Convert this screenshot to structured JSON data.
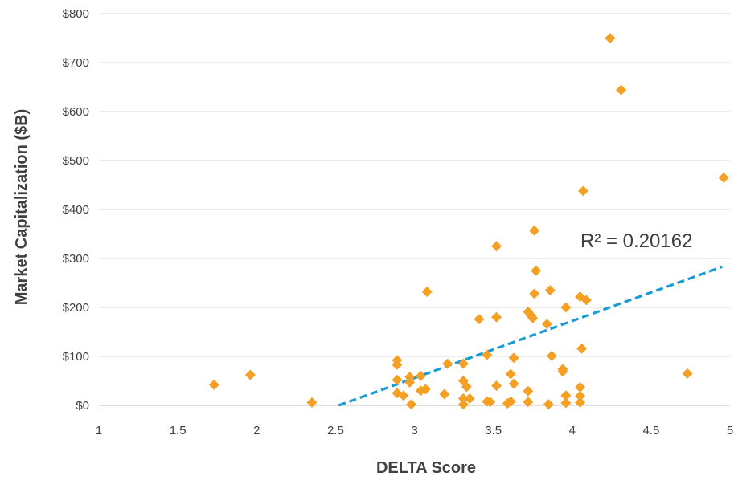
{
  "chart_data": {
    "type": "scatter",
    "title": "",
    "xlabel": "DELTA Score",
    "ylabel": "Market Capitalization  ($B)",
    "xlim": [
      1,
      5
    ],
    "ylim": [
      0,
      800
    ],
    "x_ticks": [
      "1",
      "1.5",
      "2",
      "2.5",
      "3",
      "3.5",
      "4",
      "4.5",
      "5"
    ],
    "y_ticks": [
      "$0",
      "$100",
      "$200",
      "$300",
      "$400",
      "$500",
      "$600",
      "$700",
      "$800"
    ],
    "grid": "horizontal",
    "marker": "diamond",
    "marker_color": "#F4A025",
    "trendline": {
      "label": "R² = 0.20162",
      "color": "#1A9BD7",
      "style": "dashed",
      "start": [
        2.52,
        0
      ],
      "end": [
        4.95,
        283
      ]
    },
    "series": [
      {
        "name": "",
        "points": [
          [
            1.73,
            42
          ],
          [
            1.96,
            62
          ],
          [
            2.35,
            6
          ],
          [
            2.89,
            92
          ],
          [
            2.89,
            83
          ],
          [
            2.89,
            52
          ],
          [
            2.89,
            25
          ],
          [
            2.93,
            20
          ],
          [
            2.97,
            58
          ],
          [
            2.97,
            47
          ],
          [
            2.98,
            2
          ],
          [
            3.04,
            60
          ],
          [
            3.04,
            30
          ],
          [
            3.07,
            33
          ],
          [
            3.08,
            232
          ],
          [
            3.19,
            23
          ],
          [
            3.21,
            85
          ],
          [
            3.31,
            85
          ],
          [
            3.31,
            50
          ],
          [
            3.31,
            14
          ],
          [
            3.31,
            2
          ],
          [
            3.33,
            38
          ],
          [
            3.35,
            14
          ],
          [
            3.41,
            176
          ],
          [
            3.46,
            103
          ],
          [
            3.46,
            8
          ],
          [
            3.48,
            7
          ],
          [
            3.52,
            325
          ],
          [
            3.52,
            180
          ],
          [
            3.52,
            40
          ],
          [
            3.59,
            4
          ],
          [
            3.61,
            64
          ],
          [
            3.61,
            8
          ],
          [
            3.63,
            97
          ],
          [
            3.63,
            44
          ],
          [
            3.72,
            191
          ],
          [
            3.72,
            29
          ],
          [
            3.72,
            7
          ],
          [
            3.74,
            183
          ],
          [
            3.75,
            178
          ],
          [
            3.76,
            357
          ],
          [
            3.76,
            228
          ],
          [
            3.77,
            275
          ],
          [
            3.84,
            166
          ],
          [
            3.85,
            2
          ],
          [
            3.86,
            235
          ],
          [
            3.87,
            101
          ],
          [
            3.94,
            74
          ],
          [
            3.94,
            69
          ],
          [
            3.96,
            200
          ],
          [
            3.96,
            20
          ],
          [
            3.96,
            5
          ],
          [
            4.05,
            222
          ],
          [
            4.05,
            37
          ],
          [
            4.05,
            19
          ],
          [
            4.05,
            6
          ],
          [
            4.06,
            116
          ],
          [
            4.07,
            438
          ],
          [
            4.09,
            215
          ],
          [
            4.24,
            750
          ],
          [
            4.31,
            644
          ],
          [
            4.73,
            65
          ],
          [
            4.96,
            465
          ]
        ]
      }
    ]
  }
}
